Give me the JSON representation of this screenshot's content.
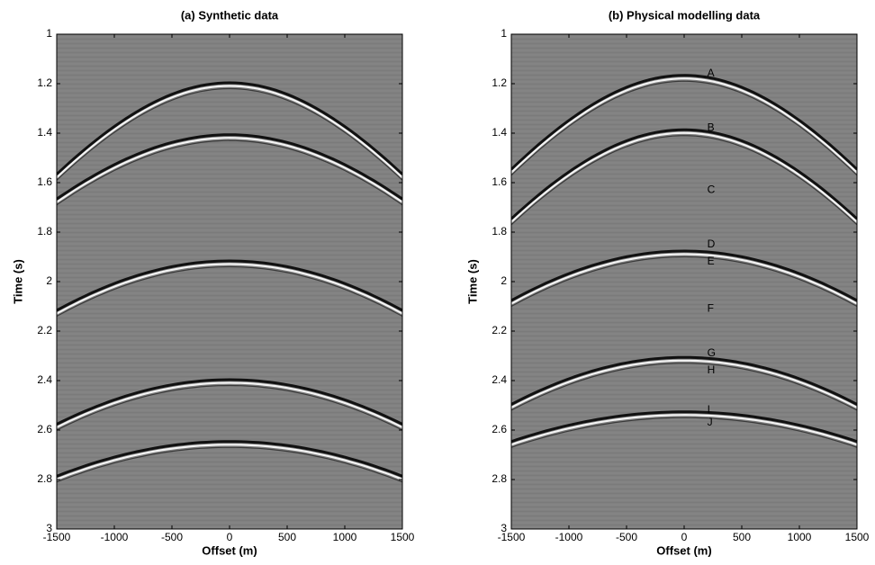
{
  "chart_data": [
    {
      "type": "seismic",
      "title": "(a) Synthetic data",
      "x_label": "Offset (m)",
      "y_label": "Time (s)",
      "xlim": [
        -1500,
        1500
      ],
      "ylim": [
        1,
        3
      ],
      "y_inverted": true,
      "xticks": [
        -1500,
        -1000,
        -500,
        0,
        500,
        1000,
        1500
      ],
      "yticks": [
        1,
        1.2,
        1.4,
        1.6,
        1.8,
        2,
        2.2,
        2.4,
        2.6,
        2.8,
        3
      ],
      "background": "#808080",
      "events": [
        {
          "t0": 1.2,
          "t_edge": 1.57
        },
        {
          "t0": 1.41,
          "t_edge": 1.67
        },
        {
          "t0": 1.92,
          "t_edge": 2.12
        },
        {
          "t0": 2.4,
          "t_edge": 2.58
        },
        {
          "t0": 2.65,
          "t_edge": 2.79
        }
      ]
    },
    {
      "type": "seismic",
      "title": "(b) Physical modelling data",
      "x_label": "Offset (m)",
      "y_label": "Time (s)",
      "xlim": [
        -1500,
        1500
      ],
      "ylim": [
        1,
        3
      ],
      "y_inverted": true,
      "xticks": [
        -1500,
        -1000,
        -500,
        0,
        500,
        1000,
        1500
      ],
      "yticks": [
        1,
        1.2,
        1.4,
        1.6,
        1.8,
        2,
        2.2,
        2.4,
        2.6,
        2.8,
        3
      ],
      "background": "#808080",
      "events": [
        {
          "t0": 1.17,
          "t_edge": 1.55
        },
        {
          "t0": 1.39,
          "t_edge": 1.75
        },
        {
          "t0": 1.88,
          "t_edge": 2.08
        },
        {
          "t0": 2.31,
          "t_edge": 2.5
        },
        {
          "t0": 2.53,
          "t_edge": 2.65
        }
      ],
      "annotation_color": "#e8e800",
      "annotations": [
        {
          "text": "A",
          "x": 200,
          "y": 1.16
        },
        {
          "text": "B",
          "x": 200,
          "y": 1.38
        },
        {
          "text": "C",
          "x": 200,
          "y": 1.63
        },
        {
          "text": "D",
          "x": 200,
          "y": 1.85
        },
        {
          "text": "E",
          "x": 200,
          "y": 1.92
        },
        {
          "text": "F",
          "x": 200,
          "y": 2.11
        },
        {
          "text": "G",
          "x": 200,
          "y": 2.29
        },
        {
          "text": "H",
          "x": 200,
          "y": 2.36
        },
        {
          "text": "I",
          "x": 200,
          "y": 2.52
        },
        {
          "text": "J",
          "x": 200,
          "y": 2.57
        }
      ]
    }
  ]
}
